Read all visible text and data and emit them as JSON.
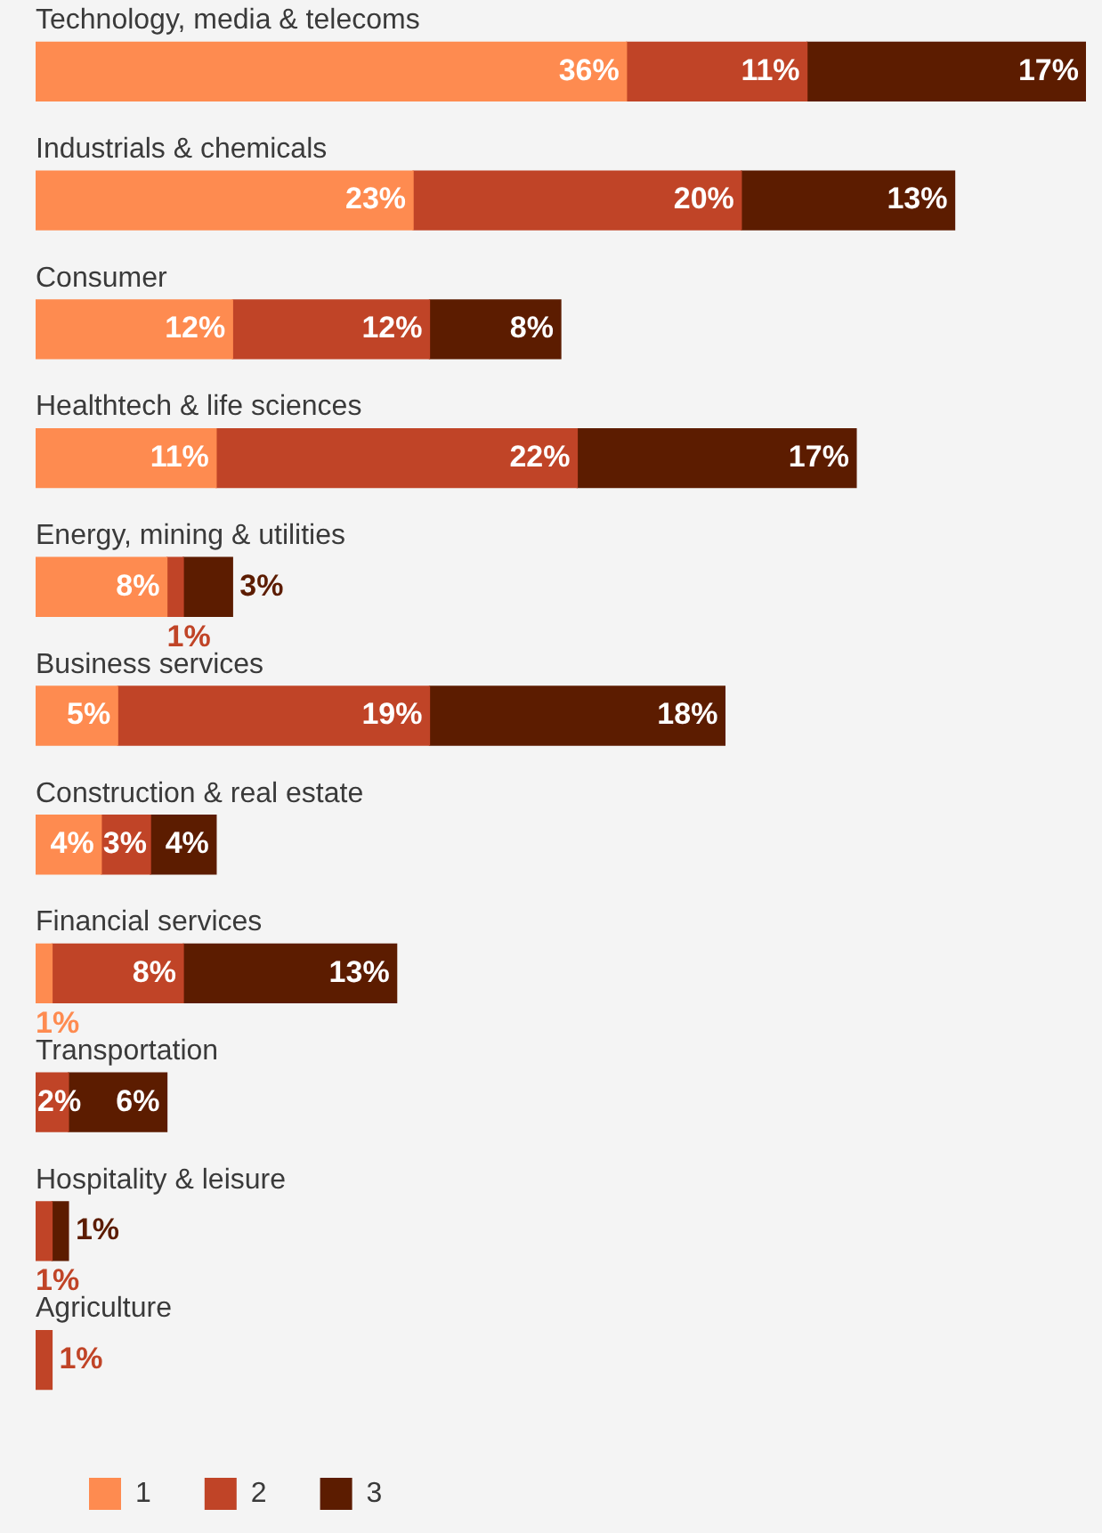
{
  "chart_data": {
    "type": "bar",
    "orientation": "horizontal",
    "stacked": true,
    "legend": "bottom left",
    "categories": [
      "Technology, media & telecoms",
      "Industrials & chemicals",
      "Consumer",
      "Healthtech & life sciences",
      "Energy, mining & utilities",
      "Business services",
      "Construction & real estate",
      "Financial services",
      "Transportation",
      "Hospitality & leisure",
      "Agriculture"
    ],
    "series": [
      {
        "name": "1",
        "color": "#fe8b50",
        "values": [
          36,
          23,
          12,
          11,
          8,
          5,
          4,
          1,
          null,
          null,
          null
        ],
        "value_labels": [
          "36%",
          "23%",
          "12%",
          "11%",
          "8%",
          "5%",
          "4%",
          "1%",
          null,
          null,
          null
        ]
      },
      {
        "name": "2",
        "color": "#c04427",
        "values": [
          11,
          20,
          12,
          22,
          1,
          19,
          3,
          8,
          2,
          1,
          1
        ],
        "value_labels": [
          "11%",
          "20%",
          "12%",
          "22%",
          "1%",
          "19%",
          "3%",
          "8%",
          "2%",
          "1%",
          "1%"
        ]
      },
      {
        "name": "3",
        "color": "#5c1c00",
        "values": [
          17,
          13,
          8,
          17,
          3,
          18,
          4,
          13,
          6,
          1,
          null
        ],
        "value_labels": [
          "17%",
          "13%",
          "8%",
          "17%",
          "3%",
          "18%",
          "4%",
          "13%",
          "6%",
          "1%",
          null
        ]
      }
    ]
  }
}
